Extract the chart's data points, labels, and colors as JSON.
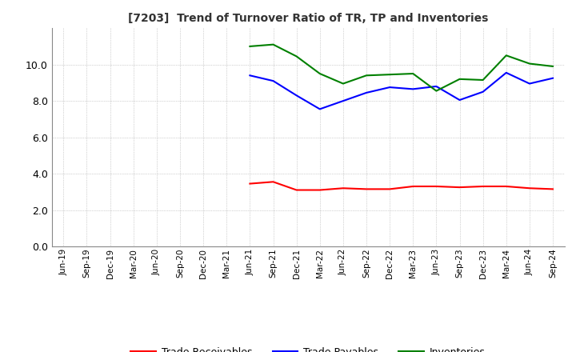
{
  "title": "[7203]  Trend of Turnover Ratio of TR, TP and Inventories",
  "x_labels": [
    "Jun-19",
    "Sep-19",
    "Dec-19",
    "Mar-20",
    "Jun-20",
    "Sep-20",
    "Dec-20",
    "Mar-21",
    "Jun-21",
    "Sep-21",
    "Dec-21",
    "Mar-22",
    "Jun-22",
    "Sep-22",
    "Dec-22",
    "Mar-23",
    "Jun-23",
    "Sep-23",
    "Dec-23",
    "Mar-24",
    "Jun-24",
    "Sep-24"
  ],
  "trade_receivables": [
    null,
    null,
    null,
    null,
    null,
    null,
    null,
    null,
    3.45,
    3.55,
    3.1,
    3.1,
    3.2,
    3.15,
    3.15,
    3.3,
    3.3,
    3.25,
    3.3,
    3.3,
    3.2,
    3.15
  ],
  "trade_payables": [
    null,
    null,
    null,
    null,
    null,
    null,
    null,
    null,
    9.4,
    9.1,
    8.3,
    7.55,
    8.0,
    8.45,
    8.75,
    8.65,
    8.8,
    8.05,
    8.5,
    9.55,
    8.95,
    9.25
  ],
  "inventories": [
    null,
    null,
    null,
    null,
    null,
    null,
    null,
    null,
    11.0,
    11.1,
    10.45,
    9.5,
    8.95,
    9.4,
    9.45,
    9.5,
    8.55,
    9.2,
    9.15,
    10.5,
    10.05,
    9.9
  ],
  "ylim": [
    0,
    12
  ],
  "yticks": [
    0.0,
    2.0,
    4.0,
    6.0,
    8.0,
    10.0
  ],
  "colors": {
    "trade_receivables": "#ff0000",
    "trade_payables": "#0000ff",
    "inventories": "#008000"
  },
  "legend_labels": [
    "Trade Receivables",
    "Trade Payables",
    "Inventories"
  ],
  "background_color": "#ffffff",
  "grid_color": "#aaaaaa"
}
